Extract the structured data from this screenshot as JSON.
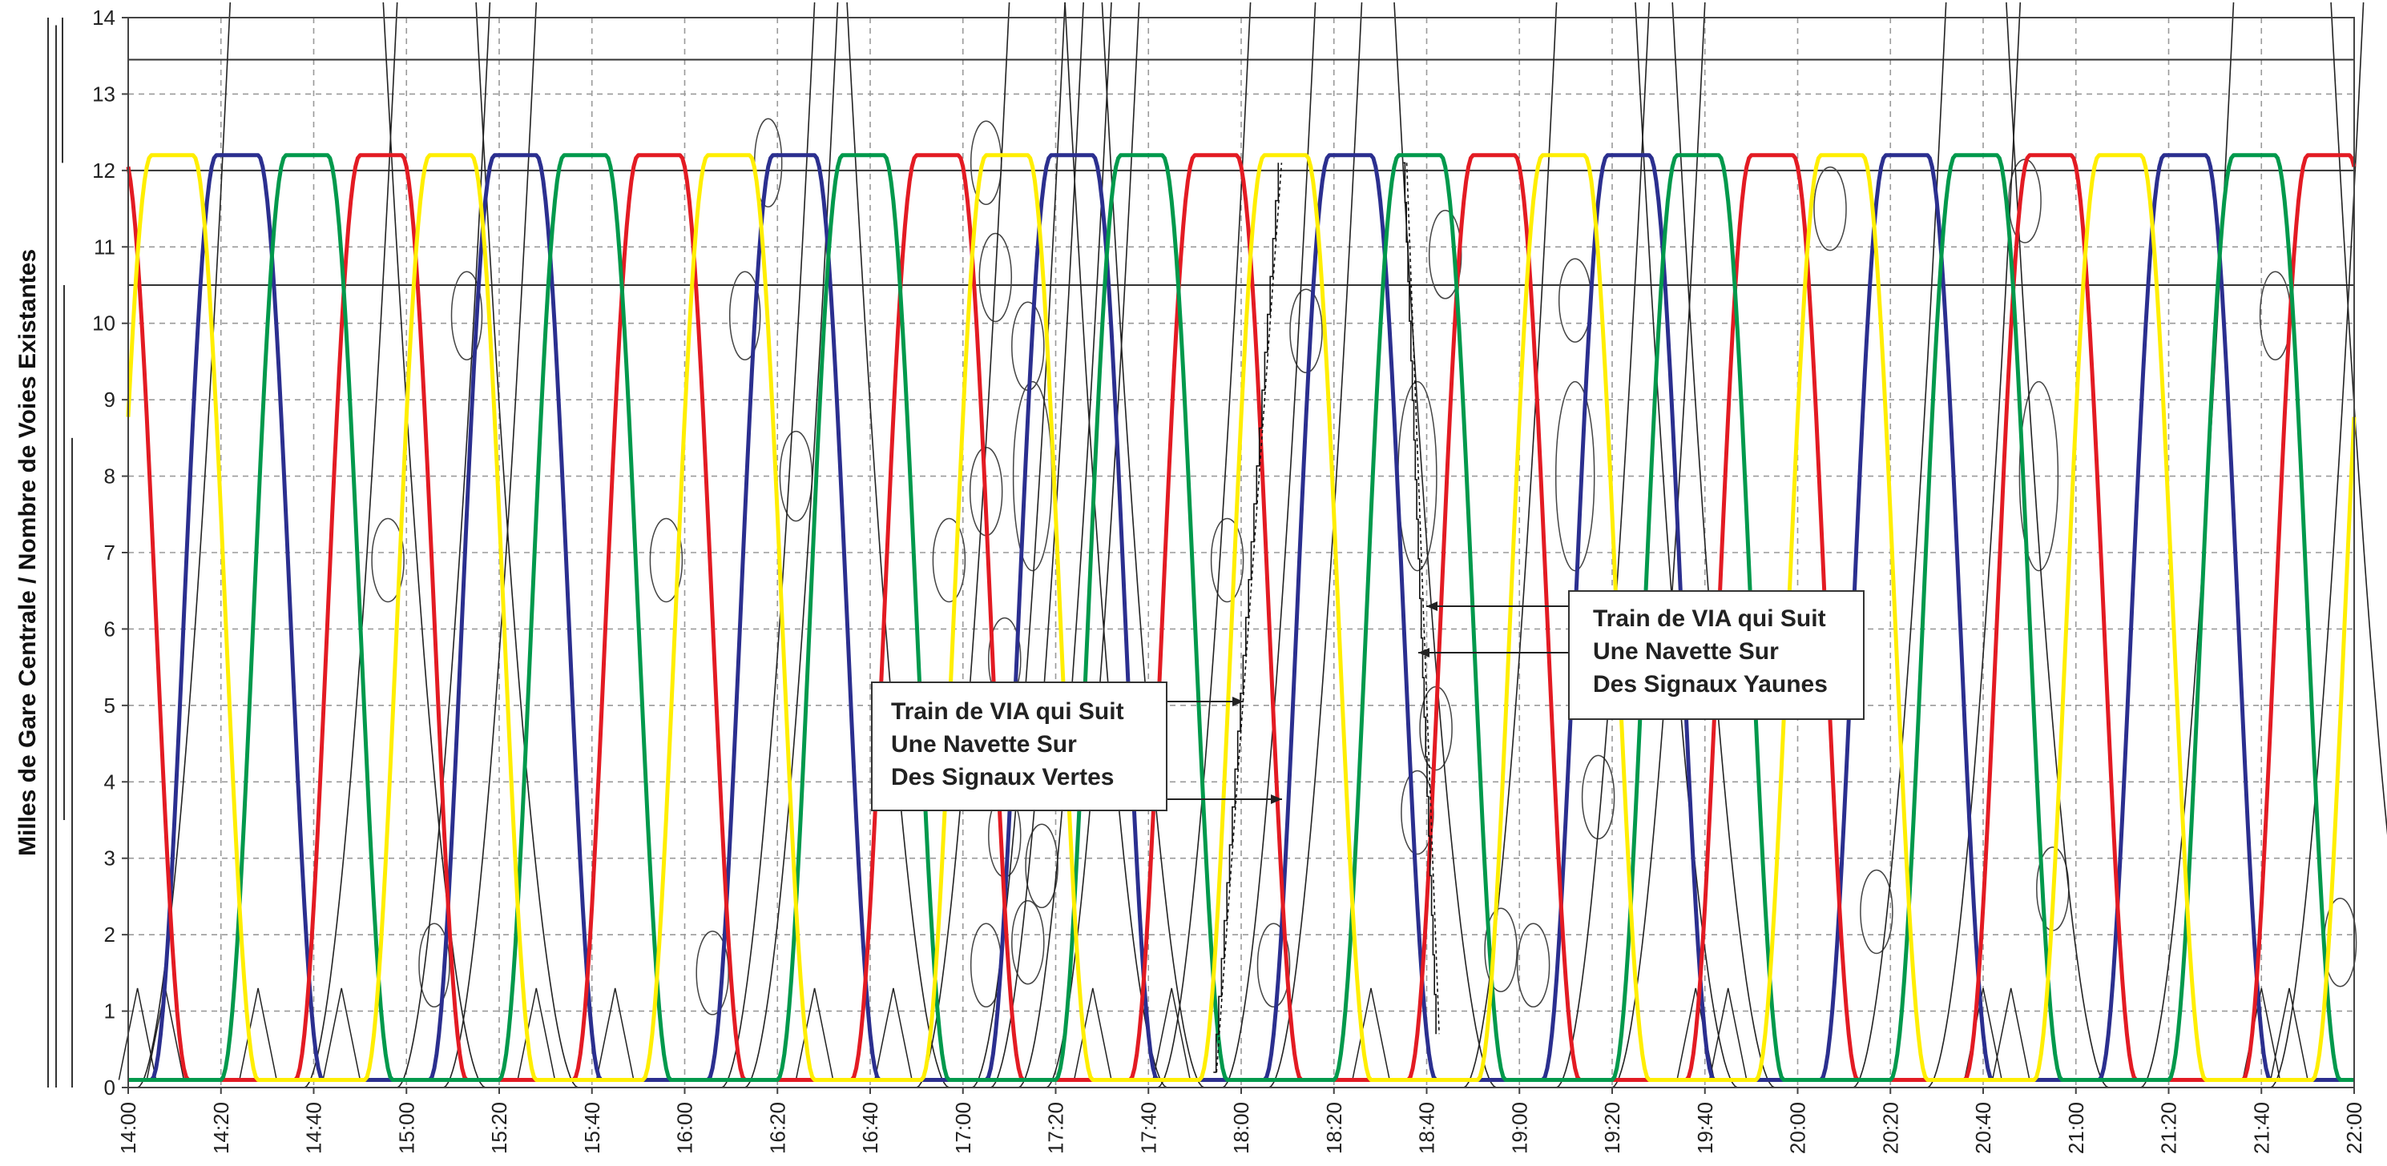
{
  "chart_data": {
    "type": "line",
    "title": "",
    "xlabel": "",
    "ylabel": "Milles de Gare Centrale / Nombre de Voies Existantes",
    "xlim": [
      "14:00",
      "22:00"
    ],
    "ylim": [
      0,
      14
    ],
    "x_ticks": [
      "14:00",
      "14:20",
      "14:40",
      "15:00",
      "15:20",
      "15:40",
      "16:00",
      "16:20",
      "16:40",
      "17:00",
      "17:20",
      "17:40",
      "18:00",
      "18:20",
      "18:40",
      "19:00",
      "19:20",
      "19:40",
      "20:00",
      "20:20",
      "20:40",
      "21:00",
      "21:20",
      "21:40",
      "22:00"
    ],
    "y_ticks": [
      "0",
      "1",
      "2",
      "3",
      "4",
      "5",
      "6",
      "7",
      "8",
      "9",
      "10",
      "11",
      "12",
      "13",
      "14"
    ],
    "grid": true,
    "reference_lines_miles": [
      13.45,
      12.0,
      10.5
    ],
    "shuttles": [
      {
        "color": "blue",
        "hex": "#2b2f8f",
        "trips": [
          [
            "14:00",
            "14:05",
            0.1
          ],
          [
            "14:05",
            "14:19",
            0.1,
            12.2
          ],
          [
            "14:19",
            "14:26",
            12.2
          ],
          [
            "14:26",
            "14:40",
            12.2,
            0.1
          ],
          [
            "14:40",
            "15:05",
            0.1
          ],
          [
            "15:05",
            "15:19",
            0.1,
            12.2
          ],
          [
            "15:19",
            "15:26",
            12.2
          ],
          [
            "15:26",
            "15:40",
            12.2,
            0.1
          ]
        ],
        "period_minutes": 60
      },
      {
        "color": "red",
        "hex": "#e31b23",
        "period_minutes": 60
      },
      {
        "color": "green",
        "hex": "#00994c",
        "period_minutes": 60
      },
      {
        "color": "yellow",
        "hex": "#ffee00",
        "period_minutes": 60
      }
    ],
    "annotations": [
      {
        "lines": [
          "Train de VIA qui Suit",
          "Une Navette Sur",
          "Des Signaux Vertes"
        ]
      },
      {
        "lines": [
          "Train de VIA qui Suit",
          "Une Navette Sur",
          "Des Signaux Yaunes"
        ]
      }
    ]
  }
}
